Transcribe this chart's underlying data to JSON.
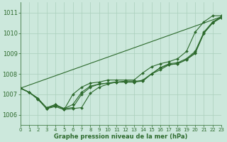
{
  "xlabel": "Graphe pression niveau de la mer (hPa)",
  "bg_color": "#cce8dc",
  "grid_color": "#aacfbc",
  "line_color": "#2d6a2d",
  "xlim": [
    0,
    23
  ],
  "ylim": [
    1005.5,
    1011.5
  ],
  "yticks": [
    1006,
    1007,
    1008,
    1009,
    1010,
    1011
  ],
  "xticks": [
    0,
    1,
    2,
    3,
    4,
    5,
    6,
    7,
    8,
    9,
    10,
    11,
    12,
    13,
    14,
    15,
    16,
    17,
    18,
    19,
    20,
    21,
    22,
    23
  ],
  "line_straight": {
    "x": [
      0,
      23
    ],
    "y": [
      1007.3,
      1010.8
    ]
  },
  "line1": {
    "x": [
      0,
      1,
      2,
      3,
      4,
      5,
      6,
      7,
      8,
      9,
      10,
      11,
      12,
      13,
      14,
      15,
      16,
      17,
      18,
      19,
      20,
      21,
      22,
      23
    ],
    "y": [
      1007.3,
      1007.1,
      1006.8,
      1006.3,
      1006.4,
      1006.25,
      1006.3,
      1006.35,
      1007.05,
      1007.35,
      1007.5,
      1007.6,
      1007.65,
      1007.65,
      1007.65,
      1008.0,
      1008.2,
      1008.45,
      1008.5,
      1008.7,
      1009.0,
      1010.0,
      1010.5,
      1010.75
    ]
  },
  "line2": {
    "x": [
      0,
      1,
      2,
      3,
      4,
      5,
      6,
      7,
      8,
      9,
      10,
      11,
      12,
      13,
      14,
      15,
      16,
      17,
      18,
      19,
      20,
      21,
      22,
      23
    ],
    "y": [
      1007.3,
      1007.1,
      1006.75,
      1006.3,
      1006.45,
      1006.3,
      1006.35,
      1007.0,
      1007.35,
      1007.5,
      1007.55,
      1007.6,
      1007.6,
      1007.6,
      1007.65,
      1008.0,
      1008.3,
      1008.45,
      1008.5,
      1008.7,
      1009.05,
      1010.0,
      1010.5,
      1010.8
    ]
  },
  "line3": {
    "x": [
      0,
      1,
      2,
      3,
      4,
      5,
      6,
      7,
      8,
      9,
      10,
      11,
      12,
      13,
      14,
      15,
      16,
      17,
      18,
      19,
      20,
      21,
      22,
      23
    ],
    "y": [
      1007.3,
      1007.1,
      1006.8,
      1006.35,
      1006.5,
      1006.3,
      1006.5,
      1007.1,
      1007.4,
      1007.5,
      1007.55,
      1007.6,
      1007.6,
      1007.6,
      1007.7,
      1008.0,
      1008.3,
      1008.5,
      1008.55,
      1008.75,
      1009.1,
      1010.05,
      1010.55,
      1010.8
    ]
  },
  "line4_top": {
    "x": [
      0,
      1,
      2,
      3,
      4,
      5,
      6,
      7,
      8,
      9,
      10,
      11,
      12,
      13,
      14,
      15,
      16,
      17,
      18,
      19,
      20,
      21,
      22,
      23
    ],
    "y": [
      1007.3,
      1007.1,
      1006.8,
      1006.3,
      1006.5,
      1006.25,
      1007.0,
      1007.35,
      1007.55,
      1007.6,
      1007.7,
      1007.7,
      1007.7,
      1007.7,
      1008.05,
      1008.35,
      1008.5,
      1008.6,
      1008.75,
      1009.1,
      1010.05,
      1010.55,
      1010.85,
      1010.85
    ]
  }
}
